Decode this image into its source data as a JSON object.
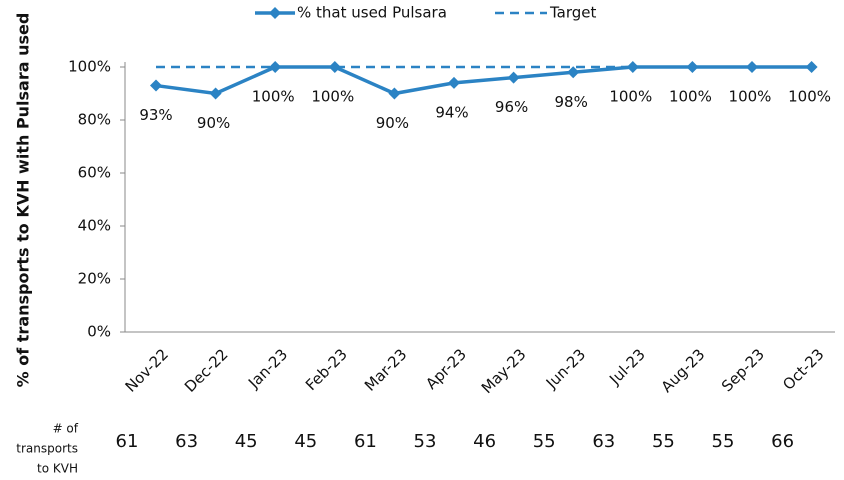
{
  "chart_data": {
    "type": "line",
    "ylabel": "% of transports to KVH with Pulsara used",
    "categories": [
      "Nov-22",
      "Dec-22",
      "Jan-23",
      "Feb-23",
      "Mar-23",
      "Apr-23",
      "May-23",
      "Jun-23",
      "Jul-23",
      "Aug-23",
      "Sep-23",
      "Oct-23"
    ],
    "series": [
      {
        "name": "% that used Pulsara",
        "color": "#2b83c4",
        "dashed": false,
        "markers": true,
        "values": [
          93,
          90,
          100,
          100,
          90,
          94,
          96,
          98,
          100,
          100,
          100,
          100
        ],
        "value_labels": [
          "93%",
          "90%",
          "100%",
          "100%",
          "90%",
          "94%",
          "96%",
          "98%",
          "100%",
          "100%",
          "100%",
          "100%"
        ]
      },
      {
        "name": "Target",
        "color": "#2b83c4",
        "dashed": true,
        "markers": false,
        "values": [
          100,
          100,
          100,
          100,
          100,
          100,
          100,
          100,
          100,
          100,
          100,
          100
        ]
      }
    ],
    "ylim": [
      0,
      100
    ],
    "yticks": [
      {
        "value": 0,
        "label": "0%"
      },
      {
        "value": 20,
        "label": "20%"
      },
      {
        "value": 40,
        "label": "40%"
      },
      {
        "value": 60,
        "label": "60%"
      },
      {
        "value": 80,
        "label": "80%"
      },
      {
        "value": 100,
        "label": "100%"
      }
    ],
    "legend": "top",
    "table": {
      "row_label": [
        "# of",
        "transports",
        "to KVH"
      ],
      "values": [
        61,
        63,
        45,
        45,
        61,
        53,
        46,
        55,
        63,
        55,
        55,
        66
      ]
    }
  }
}
